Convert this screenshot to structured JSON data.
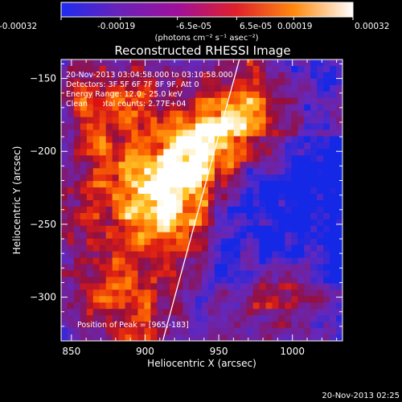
{
  "colorbar": {
    "ticks": [
      "-0.00032",
      "-0.00019",
      "-6.5e-05",
      "6.5e-05",
      "0.00019",
      "0.00032"
    ],
    "tick_values": [
      -0.00032,
      -0.00019,
      -6.5e-05,
      6.5e-05,
      0.00019,
      0.00032
    ],
    "range": [
      -0.00032,
      0.00032
    ],
    "unit": "(photons cm⁻² s⁻¹ asec⁻²)",
    "colors": [
      "#1e2cf0",
      "#6a22b8",
      "#a0109a",
      "#e0202a",
      "#ff8a10",
      "#ffffff"
    ]
  },
  "chart_data": {
    "type": "heatmap",
    "title": "Reconstructed RHESSI Image",
    "xlabel": "Heliocentric X (arcsec)",
    "ylabel": "Heliocentric Y (arcsec)",
    "xlim": [
      843,
      1034
    ],
    "ylim": [
      -330,
      -137
    ],
    "xticks": [
      850,
      900,
      950,
      1000
    ],
    "yticks": [
      -150,
      -200,
      -250,
      -300
    ],
    "info": [
      "20-Nov-2013 03:04:58.000 to 03:10:58.000",
      "Detectors: 3F 5F 6F 7F 8F 9F, Att 0",
      "Energy Range: 12.0 - 25.0 keV",
      "Clean    Total counts: 2.77E+04"
    ],
    "peak_label": "Position of Peak = [965,-183]",
    "peak": [
      965,
      -183
    ],
    "limb_line": {
      "x": [
        912,
        964
      ],
      "y": [
        -330,
        -137
      ]
    },
    "sources": [
      {
        "x": [
          965,
          -183
        ],
        "amp": 1.0
      },
      {
        "x": [
          935,
          -200
        ],
        "amp": 0.75
      },
      {
        "x": [
          920,
          -225
        ],
        "amp": 0.85
      },
      {
        "x": [
          912,
          -255
        ],
        "amp": 0.7
      },
      {
        "x": [
          878,
          -215
        ],
        "amp": 0.7
      },
      {
        "x": [
          895,
          -165
        ],
        "amp": 0.55
      },
      {
        "x": [
          862,
          -165
        ],
        "amp": 0.55
      },
      {
        "x": [
          858,
          -260
        ],
        "amp": 0.45
      },
      {
        "x": [
          882,
          -300
        ],
        "amp": 0.55
      },
      {
        "x": [
          900,
          -320
        ],
        "amp": 0.45
      },
      {
        "x": [
          990,
          -295
        ],
        "amp": 0.6
      },
      {
        "x": [
          965,
          -150
        ],
        "amp": 0.35
      }
    ]
  },
  "timestamp": "20-Nov-2013 02:25"
}
